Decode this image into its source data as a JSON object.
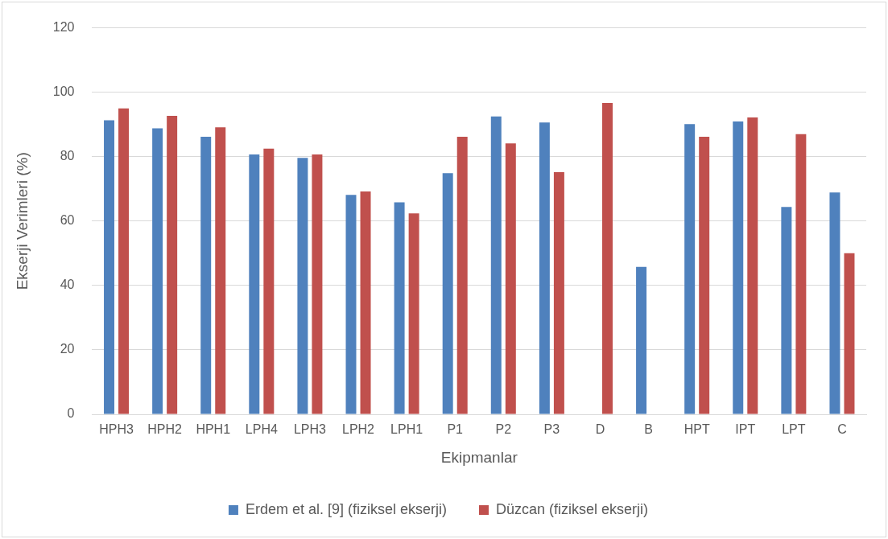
{
  "chart_data": {
    "type": "bar",
    "xlabel": "Ekipmanlar",
    "ylabel": "Ekserji Verimleri (%)",
    "categories": [
      "HPH3",
      "HPH2",
      "HPH1",
      "LPH4",
      "LPH3",
      "LPH2",
      "LPH1",
      "P1",
      "P2",
      "P3",
      "D",
      "B",
      "HPT",
      "IPT",
      "LPT",
      "C"
    ],
    "series": [
      {
        "name": "Erdem et al. [9] (fiziksel ekserji)",
        "color": "#4f81bd",
        "values": [
          91.3,
          88.8,
          86.2,
          80.7,
          79.6,
          68.1,
          65.8,
          74.9,
          92.5,
          90.6,
          null,
          45.8,
          90.1,
          90.9,
          64.4,
          68.9
        ]
      },
      {
        "name": "Düzcan (fiziksel ekserji)",
        "color": "#c0504d",
        "values": [
          95,
          92.7,
          89.1,
          82.5,
          80.7,
          69.2,
          62.4,
          86.2,
          84.1,
          75.2,
          96.7,
          null,
          86.2,
          92.2,
          87.0,
          50.0
        ]
      }
    ],
    "ylim": [
      0,
      120
    ],
    "yticks": [
      0,
      20,
      40,
      60,
      80,
      100,
      120
    ],
    "grid": "y",
    "legend": "bottom"
  }
}
